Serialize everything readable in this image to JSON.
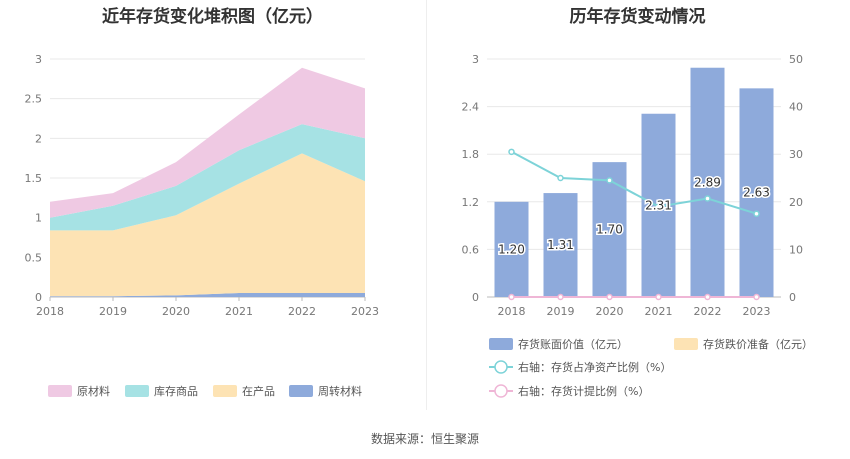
{
  "chart_data": [
    {
      "type": "area",
      "stacked": true,
      "title": "近年存货变化堆积图（亿元）",
      "x": [
        "2018",
        "2019",
        "2020",
        "2021",
        "2022",
        "2023"
      ],
      "ylim": [
        0,
        3
      ],
      "yticks": [
        "0",
        "0.5",
        "1",
        "1.5",
        "2",
        "2.5",
        "3"
      ],
      "grid": true,
      "legend_position": "bottom",
      "series": [
        {
          "name": "周转材料",
          "values": [
            0.01,
            0.01,
            0.02,
            0.05,
            0.05,
            0.05
          ],
          "color": "#8eaadb"
        },
        {
          "name": "在产品",
          "values": [
            0.83,
            0.83,
            1.01,
            1.38,
            1.76,
            1.41
          ],
          "color": "#fde3b4"
        },
        {
          "name": "库存商品",
          "values": [
            0.16,
            0.31,
            0.37,
            0.42,
            0.37,
            0.54
          ],
          "color": "#a6e2e4"
        },
        {
          "name": "原材料",
          "values": [
            0.2,
            0.16,
            0.3,
            0.45,
            0.71,
            0.63
          ],
          "color": "#efc9e3"
        }
      ],
      "legend_order": [
        "原材料",
        "库存商品",
        "在产品",
        "周转材料"
      ]
    },
    {
      "type": "bar",
      "title": "历年存货变动情况",
      "categories": [
        "2018",
        "2019",
        "2020",
        "2021",
        "2022",
        "2023"
      ],
      "ylim": [
        0,
        3
      ],
      "yticks": [
        "0",
        "0.6",
        "1.2",
        "1.8",
        "2.4",
        "3"
      ],
      "y2lim": [
        0,
        50
      ],
      "y2ticks": [
        "0",
        "10",
        "20",
        "30",
        "40",
        "50"
      ],
      "grid": true,
      "legend_position": "bottom",
      "bars": {
        "name": "存货账面价值（亿元）",
        "values": [
          1.2,
          1.31,
          1.7,
          2.31,
          2.89,
          2.63
        ],
        "labels": [
          "1.20",
          "1.31",
          "1.70",
          "2.31",
          "2.89",
          "2.63"
        ],
        "color": "#8eaadb"
      },
      "bars2": {
        "name": "存货跌价准备（亿元）",
        "values": [
          0,
          0,
          0,
          0,
          0,
          0
        ],
        "color": "#fde3b4"
      },
      "lines": [
        {
          "name": "右轴：存货占净资产比例（%）",
          "axis": "right",
          "values": [
            30.5,
            25.0,
            24.5,
            19.0,
            20.7,
            17.5
          ],
          "color": "#7dd3d8"
        },
        {
          "name": "右轴：存货计提比例（%）",
          "axis": "right",
          "values": [
            0,
            0,
            0,
            0,
            0,
            0
          ],
          "color": "#efb6d6"
        }
      ]
    }
  ],
  "source": "数据来源：恒生聚源"
}
